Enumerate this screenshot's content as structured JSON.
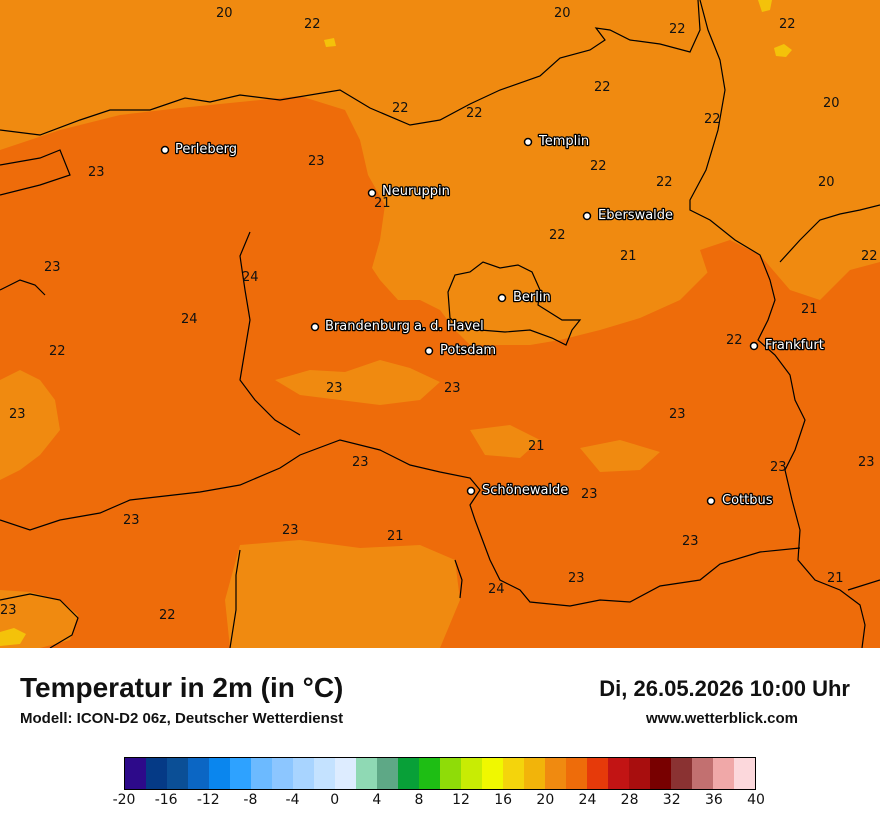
{
  "header": {
    "title": "Temperatur in 2m (in °C)",
    "model": "Modell: ICON-D2 06z, Deutscher Wetterdienst",
    "datetime": "Di, 26.05.2026 10:00 Uhr",
    "website": "www.wetterblick.com"
  },
  "colors": {
    "t20_22": "#f08a10",
    "t22_24": "#ee6c0a",
    "t18_20": "#f4c20a"
  },
  "cities": [
    "Perleberg",
    "Templin",
    "Neuruppin",
    "Eberswalde",
    "Berlin",
    "Brandenburg a. d. Havel",
    "Potsdam",
    "Frankfurt",
    "Schönewalde",
    "Cottbus"
  ],
  "values": [
    "20",
    "22",
    "20",
    "22",
    "22",
    "22",
    "22",
    "20",
    "22",
    "22",
    "22",
    "23",
    "23",
    "22",
    "21",
    "22",
    "20",
    "22",
    "21",
    "22",
    "23",
    "24",
    "24",
    "21",
    "22",
    "23",
    "23",
    "23",
    "23",
    "21",
    "23",
    "23",
    "23",
    "23",
    "23",
    "23",
    "21",
    "23",
    "23",
    "24",
    "21",
    "23",
    "22"
  ],
  "colorbar": {
    "colors": [
      "#2d0a8a",
      "#053a86",
      "#0b4f96",
      "#0b66c4",
      "#0a86ee",
      "#2ea2ff",
      "#6cbaff",
      "#8cc6ff",
      "#a8d4ff",
      "#c4e2ff",
      "#ddecff",
      "#8fd9b4",
      "#5ea886",
      "#08a038",
      "#1ebe14",
      "#8fdc08",
      "#c8ec04",
      "#f0f800",
      "#f4d40c",
      "#f2b40a",
      "#f08a10",
      "#ee6c0a",
      "#e63a0a",
      "#c21414",
      "#a80e0e",
      "#780000",
      "#8a3232",
      "#c27070",
      "#f0a8a8",
      "#fcd8dc"
    ],
    "ticks": [
      "-20",
      "-16",
      "-12",
      "-8",
      "-4",
      "0",
      "4",
      "8",
      "12",
      "16",
      "20",
      "24",
      "28",
      "32",
      "36",
      "40"
    ]
  }
}
